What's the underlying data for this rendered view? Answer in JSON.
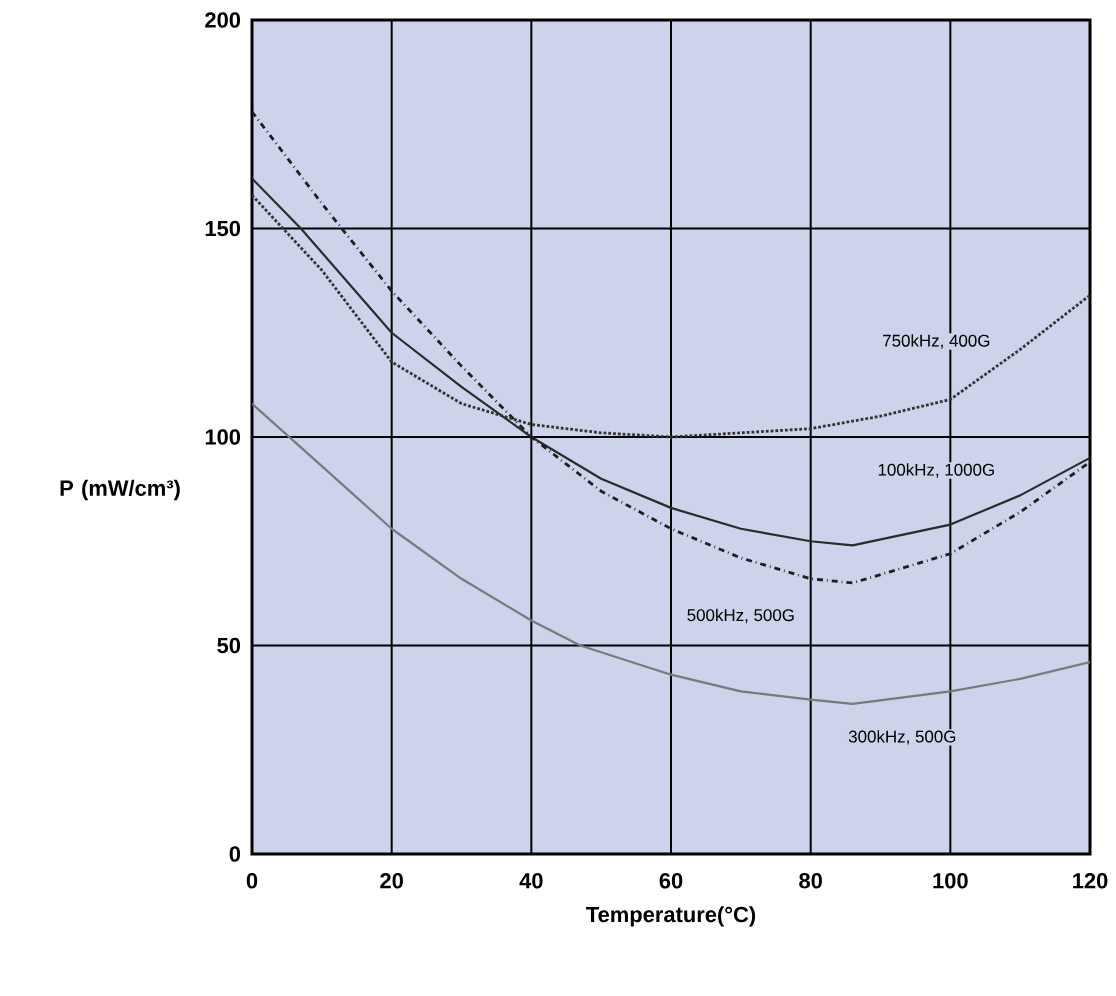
{
  "chart_data": {
    "type": "line",
    "xlabel": "Temperature(°C)",
    "ylabel": "P (mW/cm³)",
    "xlim": [
      0,
      120
    ],
    "xticks": [
      0,
      20,
      40,
      60,
      80,
      100,
      120
    ],
    "ylim": [
      0,
      200
    ],
    "yticks": [
      0,
      50,
      100,
      150,
      200
    ],
    "grid": true,
    "series": [
      {
        "name": "100kHz, 1000G",
        "color": "#2b2b2b",
        "line_style": "solid",
        "x": [
          0,
          7,
          20,
          30,
          40,
          50,
          60,
          70,
          80,
          86,
          100,
          110,
          120
        ],
        "values": [
          162,
          150,
          125,
          112,
          100,
          90,
          83,
          78,
          75,
          74,
          79,
          86,
          95
        ]
      },
      {
        "name": "500kHz, 500G",
        "color": "#1e1e1e",
        "line_style": "dashdot",
        "x": [
          0,
          10,
          20,
          30,
          40,
          50,
          60,
          70,
          80,
          86,
          100,
          110,
          120
        ],
        "values": [
          178,
          156,
          135,
          117,
          100,
          87,
          78,
          71,
          66,
          65,
          72,
          82,
          94
        ]
      },
      {
        "name": "750kHz, 400G",
        "color": "#333333",
        "line_style": "dotted",
        "x": [
          0,
          10,
          20,
          30,
          40,
          50,
          60,
          70,
          80,
          90,
          100,
          110,
          120
        ],
        "values": [
          158,
          140,
          118,
          108,
          103,
          101,
          100,
          101,
          102,
          105,
          109,
          121,
          134
        ]
      },
      {
        "name": "300kHz, 500G",
        "color": "#7a7a7a",
        "line_style": "solid",
        "x": [
          0,
          10,
          20,
          30,
          40,
          47,
          60,
          70,
          80,
          86,
          100,
          110,
          120
        ],
        "values": [
          108,
          93,
          78,
          66,
          56,
          50,
          43,
          39,
          37,
          36,
          39,
          42,
          46
        ]
      }
    ]
  }
}
